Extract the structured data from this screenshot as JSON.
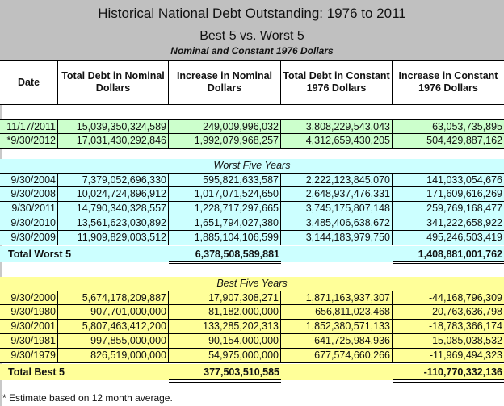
{
  "title": "Historical National Debt Outstanding: 1976 to 2011",
  "subtitle": "Best 5 vs. Worst 5",
  "caption": "Nominal and Constant 1976 Dollars",
  "columns": [
    "Date",
    "Total Debt in Nominal Dollars",
    "Increase in Nominal Dollars",
    "Total Debt in Constant 1976 Dollars",
    "Increase in Constant 1976 Dollars"
  ],
  "current_rows": [
    [
      "11/17/2011",
      "15,039,350,324,589",
      "249,009,996,032",
      "3,808,229,543,043",
      "63,053,735,895"
    ],
    [
      "*9/30/2012",
      "17,031,430,292,846",
      "1,992,079,968,257",
      "4,312,659,430,205",
      "504,429,887,162"
    ]
  ],
  "worst": {
    "label": "Worst Five Years",
    "rows": [
      [
        "9/30/2004",
        "7,379,052,696,330",
        "595,821,633,587",
        "2,222,123,845,070",
        "141,033,054,676"
      ],
      [
        "9/30/2008",
        "10,024,724,896,912",
        "1,017,071,524,650",
        "2,648,937,476,331",
        "171,609,616,269"
      ],
      [
        "9/30/2011",
        "14,790,340,328,557",
        "1,228,717,297,665",
        "3,745,175,807,148",
        "259,769,168,477"
      ],
      [
        "9/30/2010",
        "13,561,623,030,892",
        "1,651,794,027,380",
        "3,485,406,638,672",
        "341,222,658,922"
      ],
      [
        "9/30/2009",
        "11,909,829,003,512",
        "1,885,104,106,599",
        "3,144,183,979,750",
        "495,246,503,419"
      ]
    ],
    "total_label": "Total Worst 5",
    "total_nominal_increase": "6,378,508,589,881",
    "total_constant_increase": "1,408,881,001,762"
  },
  "best": {
    "label": "Best Five Years",
    "rows": [
      [
        "9/30/2000",
        "5,674,178,209,887",
        "17,907,308,271",
        "1,871,163,937,307",
        "-44,168,796,309"
      ],
      [
        "9/30/1980",
        "907,701,000,000",
        "81,182,000,000",
        "656,811,023,468",
        "-20,763,636,798"
      ],
      [
        "9/30/2001",
        "5,807,463,412,200",
        "133,285,202,313",
        "1,852,380,571,133",
        "-18,783,366,174"
      ],
      [
        "9/30/1981",
        "997,855,000,000",
        "90,154,000,000",
        "641,725,984,936",
        "-15,085,038,532"
      ],
      [
        "9/30/1979",
        "826,519,000,000",
        "54,975,000,000",
        "677,574,660,266",
        "-11,969,494,323"
      ]
    ],
    "total_label": "Total Best 5",
    "total_nominal_increase": "377,503,510,585",
    "total_constant_increase": "-110,770,332,136"
  },
  "footnote": "* Estimate based on 12 month average.",
  "colors": {
    "title_bg": "#c0c0c0",
    "current": "#ccffcc",
    "worst": "#ccffff",
    "best": "#ffff99"
  }
}
